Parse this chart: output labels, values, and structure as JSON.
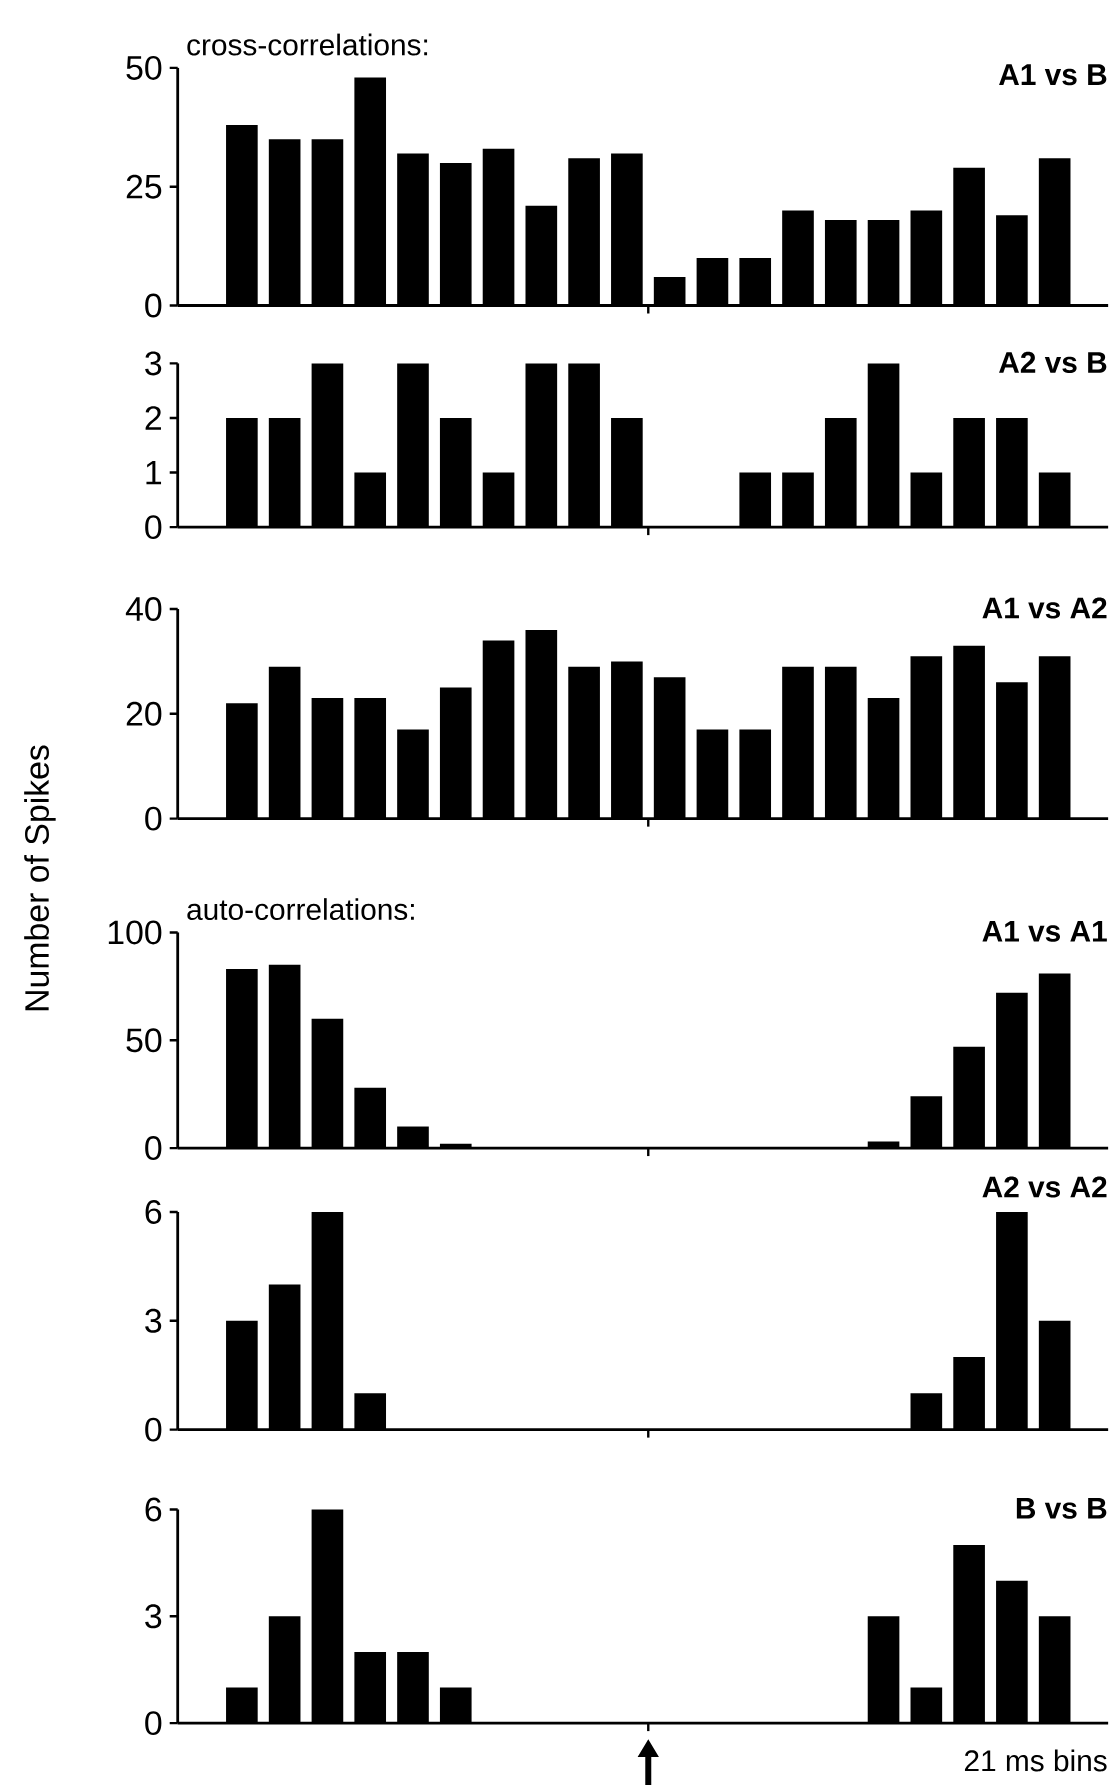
{
  "chart_data": [
    {
      "type": "bar",
      "title": "A1 vs B",
      "annotations": [
        "cross-correlations:"
      ],
      "tick_labels": "y",
      "color": "#000000",
      "categories": [
        null,
        null,
        null,
        null,
        null,
        null,
        null,
        null,
        null,
        null,
        null,
        null,
        null,
        null,
        null,
        null,
        null,
        null,
        null,
        null
      ],
      "values": [
        38,
        35,
        35,
        48,
        32,
        30,
        33,
        21,
        31,
        32,
        6,
        10,
        10,
        20,
        18,
        18,
        20,
        29,
        19,
        31
      ],
      "ylim": [
        0,
        50
      ],
      "yticks": [
        0,
        25,
        50
      ]
    },
    {
      "type": "bar",
      "title": "A2 vs B",
      "tick_labels": "y",
      "color": "#000000",
      "categories": [
        null,
        null,
        null,
        null,
        null,
        null,
        null,
        null,
        null,
        null,
        null,
        null,
        null,
        null,
        null,
        null,
        null,
        null,
        null,
        null
      ],
      "values": [
        2,
        2,
        3,
        1,
        3,
        2,
        1,
        3,
        3,
        2,
        0,
        0,
        1,
        1,
        2,
        3,
        1,
        2,
        2,
        1
      ],
      "ylim": [
        0,
        3
      ],
      "yticks": [
        0,
        1,
        2,
        3
      ]
    },
    {
      "type": "bar",
      "title": "A1 vs A2",
      "ylabel": "Number of Spikes",
      "tick_labels": "y",
      "color": "#000000",
      "categories": [
        null,
        null,
        null,
        null,
        null,
        null,
        null,
        null,
        null,
        null,
        null,
        null,
        null,
        null,
        null,
        null,
        null,
        null,
        null,
        null
      ],
      "values": [
        22,
        29,
        23,
        23,
        17,
        25,
        34,
        36,
        29,
        30,
        27,
        17,
        17,
        29,
        29,
        23,
        31,
        33,
        26,
        31
      ],
      "ylim": [
        0,
        40
      ],
      "yticks": [
        0,
        20,
        40
      ]
    },
    {
      "type": "bar",
      "title": "A1 vs A1",
      "annotations": [
        "auto-correlations:"
      ],
      "tick_labels": "y",
      "color": "#000000",
      "categories": [
        null,
        null,
        null,
        null,
        null,
        null,
        null,
        null,
        null,
        null,
        null,
        null,
        null,
        null,
        null,
        null,
        null,
        null,
        null,
        null
      ],
      "values": [
        83,
        85,
        60,
        28,
        10,
        2,
        0,
        0,
        0,
        0,
        0,
        0,
        0,
        0,
        0,
        3,
        24,
        47,
        72,
        81
      ],
      "ylim": [
        0,
        100
      ],
      "yticks": [
        0,
        50,
        100
      ]
    },
    {
      "type": "bar",
      "title": "A2 vs A2",
      "tick_labels": "y",
      "color": "#000000",
      "categories": [
        null,
        null,
        null,
        null,
        null,
        null,
        null,
        null,
        null,
        null,
        null,
        null,
        null,
        null,
        null,
        null,
        null,
        null,
        null,
        null
      ],
      "values": [
        3,
        4,
        6,
        1,
        0,
        0,
        0,
        0,
        0,
        0,
        0,
        0,
        0,
        0,
        0,
        0,
        1,
        2,
        6,
        3
      ],
      "ylim": [
        0,
        6
      ],
      "yticks": [
        0,
        3,
        6
      ]
    },
    {
      "type": "bar",
      "title": "B vs B",
      "annotations": [
        "21 ms bins"
      ],
      "tick_labels": "y",
      "color": "#000000",
      "categories": [
        null,
        null,
        null,
        null,
        null,
        null,
        null,
        null,
        null,
        null,
        null,
        null,
        null,
        null,
        null,
        null,
        null,
        null,
        null,
        null
      ],
      "values": [
        1,
        3,
        6,
        2,
        2,
        1,
        0,
        0,
        0,
        0,
        0,
        0,
        0,
        0,
        0,
        3,
        1,
        5,
        4,
        3
      ],
      "ylim": [
        0,
        6
      ],
      "yticks": [
        0,
        3,
        6
      ]
    }
  ]
}
